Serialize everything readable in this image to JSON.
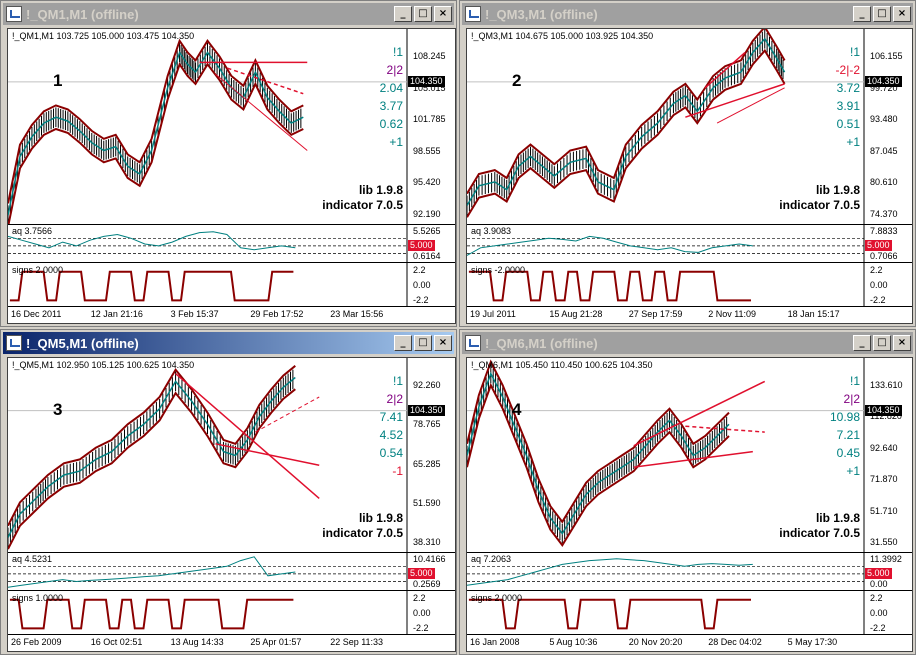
{
  "windows": [
    {
      "title": "!_QM1,M1 (offline)",
      "info": "!_QM1,M1  103.725 105.000 103.475 104.350",
      "number": "1",
      "price_ticks": [
        "108.245",
        "105.015",
        "101.785",
        "98.555",
        "95.420",
        "92.190"
      ],
      "current_price": "104.350",
      "signals": [
        {
          "text": "!1",
          "color": "#008080"
        },
        {
          "text": "2|2",
          "color": "#800080"
        },
        {
          "text": "2.04",
          "color": "#008080"
        },
        {
          "text": "3.77",
          "color": "#008080"
        },
        {
          "text": "0.62",
          "color": "#008080"
        },
        {
          "text": "+1",
          "color": "#008080"
        }
      ],
      "lib": "lib 1.9.8",
      "indicator": "indicator 7.0.5",
      "aq_label": "aq 3.7566",
      "aq_ticks": [
        "5.5265",
        "5.000",
        "0.6164"
      ],
      "signs_label": "signs 2.0000",
      "signs_ticks": [
        "2.2",
        "0.00",
        "-2.2"
      ],
      "dates": [
        "16 Dec 2011",
        "12 Jan 21:16",
        "3 Feb 15:37",
        "29 Feb 17:52",
        "23 Mar 15:56"
      ]
    },
    {
      "title": "!_QM3,M1 (offline)",
      "info": "!_QM3,M1  104.675 105.000 103.925 104.350",
      "number": "2",
      "price_ticks": [
        "106.155",
        "99.720",
        "93.480",
        "87.045",
        "80.610",
        "74.370"
      ],
      "current_price": "104.350",
      "signals": [
        {
          "text": "!1",
          "color": "#008080"
        },
        {
          "text": "-2|-2",
          "color": "#e0102e"
        },
        {
          "text": "3.72",
          "color": "#008080"
        },
        {
          "text": "3.91",
          "color": "#008080"
        },
        {
          "text": "0.51",
          "color": "#008080"
        },
        {
          "text": "+1",
          "color": "#008080"
        }
      ],
      "lib": "lib 1.9.8",
      "indicator": "indicator 7.0.5",
      "aq_label": "aq 3.9083",
      "aq_ticks": [
        "7.8833",
        "5.000",
        "0.7066"
      ],
      "signs_label": "signs -2.0000",
      "signs_ticks": [
        "2.2",
        "0.00",
        "-2.2"
      ],
      "dates": [
        "19 Jul 2011",
        "15 Aug 21:28",
        "27 Sep 17:59",
        "2 Nov 11:09",
        "18 Jan 15:17"
      ]
    },
    {
      "title": "!_QM5,M1 (offline)",
      "info": "!_QM5,M1  102.950 105.125 100.625 104.350",
      "number": "3",
      "price_ticks": [
        "92.260",
        "78.765",
        "65.285",
        "51.590",
        "38.310"
      ],
      "current_price": "104.350",
      "signals": [
        {
          "text": "!1",
          "color": "#008080"
        },
        {
          "text": "2|2",
          "color": "#800080"
        },
        {
          "text": "7.41",
          "color": "#008080"
        },
        {
          "text": "4.52",
          "color": "#008080"
        },
        {
          "text": "0.54",
          "color": "#008080"
        },
        {
          "text": "-1",
          "color": "#e0102e"
        }
      ],
      "lib": "lib 1.9.8",
      "indicator": "indicator 7.0.5",
      "aq_label": "aq 4.5231",
      "aq_ticks": [
        "10.4166",
        "5.000",
        "0.2569"
      ],
      "signs_label": "signs 1.0000",
      "signs_ticks": [
        "2.2",
        "0.00",
        "-2.2"
      ],
      "dates": [
        "26 Feb 2009",
        "16 Oct 02:51",
        "13 Aug 14:33",
        "25 Apr 01:57",
        "22 Sep 11:33"
      ]
    },
    {
      "title": "!_QM6,M1 (offline)",
      "info": "!_QM6,M1  105.450 110.450 100.625 104.350",
      "number": "4",
      "price_ticks": [
        "133.610",
        "112.820",
        "92.640",
        "71.870",
        "51.710",
        "31.550"
      ],
      "current_price": "104.350",
      "signals": [
        {
          "text": "!1",
          "color": "#008080"
        },
        {
          "text": "2|2",
          "color": "#800080"
        },
        {
          "text": "10.98",
          "color": "#008080"
        },
        {
          "text": "7.21",
          "color": "#008080"
        },
        {
          "text": "0.45",
          "color": "#008080"
        },
        {
          "text": "+1",
          "color": "#008080"
        }
      ],
      "lib": "lib 1.9.8",
      "indicator": "indicator 7.0.5",
      "aq_label": "aq 7.2063",
      "aq_ticks": [
        "11.3992",
        "5.000",
        "0.00"
      ],
      "signs_label": "signs 2.0000",
      "signs_ticks": [
        "2.2",
        "0.00",
        "-2.2"
      ],
      "dates": [
        "16 Jan 2008",
        "5 Aug 10:36",
        "20 Nov 20:20",
        "28 Dec 04:02",
        "5 May 17:30"
      ]
    }
  ],
  "colors": {
    "band": "#8b0000",
    "mid": "#008080",
    "trend": "#e0102e",
    "price_tag": "#000000",
    "level_tag": "#e0102e"
  }
}
